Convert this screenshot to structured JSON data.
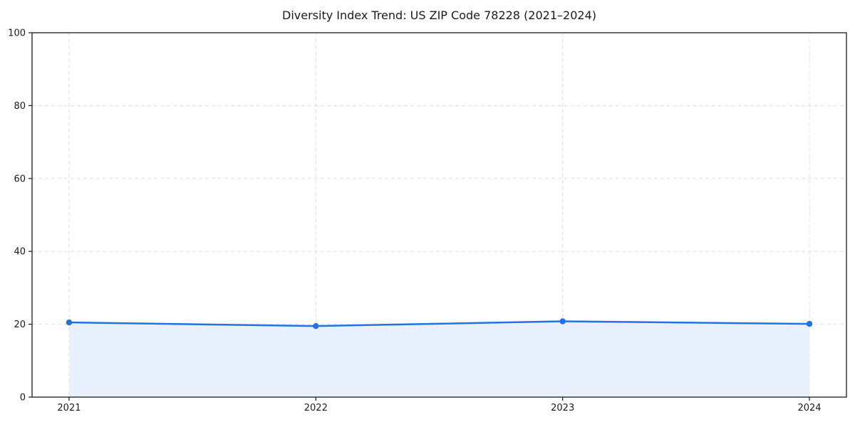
{
  "chart_data": {
    "type": "line",
    "title": "Diversity Index Trend: US ZIP Code 78228 (2021–2024)",
    "series_name": "Diversity Index",
    "categories": [
      "2021",
      "2022",
      "2023",
      "2024"
    ],
    "x": [
      2021,
      2022,
      2023,
      2024
    ],
    "values": [
      20.5,
      19.5,
      20.8,
      20.1
    ],
    "xlabel": "",
    "ylabel": "",
    "xlim": [
      2020.85,
      2024.15
    ],
    "ylim": [
      0,
      100
    ],
    "yticks": [
      0,
      20,
      40,
      60,
      80,
      100
    ],
    "grid": true,
    "grid_style": "dashed",
    "area_fill": true,
    "markers": true,
    "legend": "none",
    "colors": {
      "line": "#2472e0",
      "marker": "#2472e0",
      "fill": "#e8f0fc",
      "grid": "#dedede",
      "spine": "#1a1a1a",
      "text": "#1a1a1a",
      "background": "#ffffff"
    }
  }
}
